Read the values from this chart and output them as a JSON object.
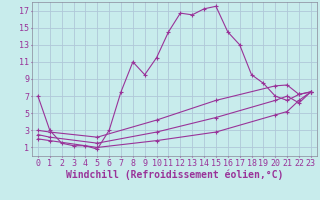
{
  "xlabel": "Windchill (Refroidissement éolien,°C)",
  "background_color": "#c8ecec",
  "grid_color": "#b0c8d8",
  "line_color": "#993399",
  "xlim": [
    -0.5,
    23.5
  ],
  "ylim": [
    0,
    18
  ],
  "xticks": [
    0,
    1,
    2,
    3,
    4,
    5,
    6,
    7,
    8,
    9,
    10,
    11,
    12,
    13,
    14,
    15,
    16,
    17,
    18,
    19,
    20,
    21,
    22,
    23
  ],
  "yticks": [
    1,
    3,
    5,
    7,
    9,
    11,
    13,
    15,
    17
  ],
  "line1_x": [
    0,
    1,
    2,
    3,
    4,
    5,
    6,
    7,
    8,
    9,
    10,
    11,
    12,
    13,
    14,
    15,
    16,
    17,
    18,
    19,
    20,
    21,
    22,
    23
  ],
  "line1_y": [
    7,
    3,
    1.5,
    1.2,
    1.2,
    0.8,
    3,
    7.5,
    11,
    9.5,
    11.5,
    14.5,
    16.7,
    16.5,
    17.2,
    17.5,
    14.5,
    13,
    9.5,
    8.5,
    7,
    6.5,
    7.2,
    7.5
  ],
  "line2_x": [
    0,
    1,
    5,
    10,
    15,
    20,
    21,
    22,
    23
  ],
  "line2_y": [
    2,
    1.8,
    1,
    1.8,
    2.8,
    4.8,
    5.2,
    6.5,
    7.5
  ],
  "line3_x": [
    0,
    1,
    5,
    10,
    15,
    20,
    21,
    22,
    23
  ],
  "line3_y": [
    2.5,
    2.2,
    1.5,
    2.8,
    4.5,
    6.5,
    7,
    6.2,
    7.5
  ],
  "line4_x": [
    0,
    1,
    5,
    10,
    15,
    20,
    21,
    22,
    23
  ],
  "line4_y": [
    3,
    2.8,
    2.2,
    4.2,
    6.5,
    8.2,
    8.3,
    7.2,
    7.5
  ],
  "font_size_label": 7,
  "tick_font_size": 6
}
